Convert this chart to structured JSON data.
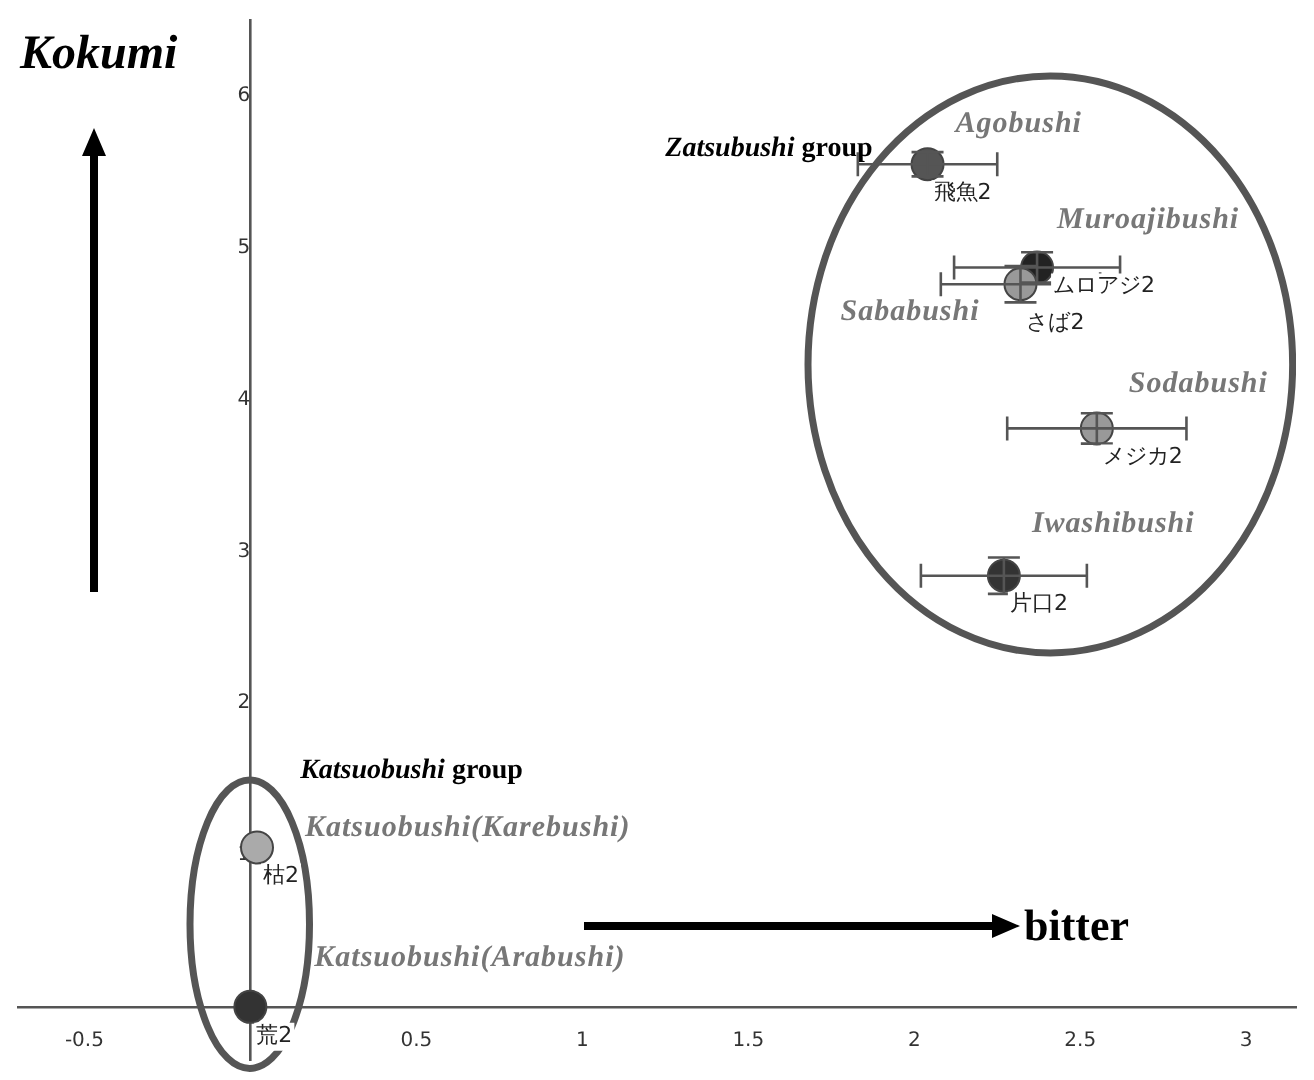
{
  "chart_data": {
    "type": "scatter",
    "xlabel": "bitter",
    "ylabel": "Kokumi",
    "x": [
      2.04,
      2.37,
      2.32,
      2.55,
      2.27,
      0.02,
      0
    ],
    "values": [
      5.55,
      4.87,
      4.76,
      3.81,
      2.84,
      1.05,
      0
    ],
    "colors": [
      "#555555",
      "#222222",
      "#999999",
      "#999999",
      "#333333",
      "#aaaaaa",
      "#333333"
    ],
    "xerrors": [
      0.21,
      0.25,
      0.24,
      0.27,
      0.25,
      null,
      null
    ],
    "errors": [
      0.08,
      0.1,
      0.12,
      0.1,
      0.12,
      null,
      null
    ],
    "value_labels": [
      "飛魚2",
      "ムロアジ2",
      "さば2",
      "メジカ2",
      "片口2",
      "枯2",
      "荒2"
    ],
    "annotations": [
      {
        "text": "Agobushi",
        "x": 2.04,
        "y": 5.55
      },
      {
        "text": "Muroajibushi",
        "x": 2.37,
        "y": 4.87
      },
      {
        "text": "Sababushi",
        "x": 2.32,
        "y": 4.76
      },
      {
        "text": "Sodabushi",
        "x": 2.55,
        "y": 3.81
      },
      {
        "text": "Iwashibushi",
        "x": 2.27,
        "y": 2.84
      },
      {
        "text": "Katsuobushi(Karebushi)",
        "x": 0.02,
        "y": 1.05
      },
      {
        "text": "Katsuobushi(Arabushi)",
        "x": 0,
        "y": 0
      },
      "Zatsubushi group",
      "Katsuobushi group"
    ],
    "xlim": [
      -0.7,
      3.15
    ],
    "ylim": [
      -0.35,
      6.5
    ],
    "xticks": [
      -0.5,
      0.5,
      1,
      1.5,
      2,
      2.5,
      3
    ],
    "yticks": [
      1,
      2,
      3,
      4,
      5,
      6
    ],
    "marker": "circle",
    "grid": false,
    "legend": false
  }
}
